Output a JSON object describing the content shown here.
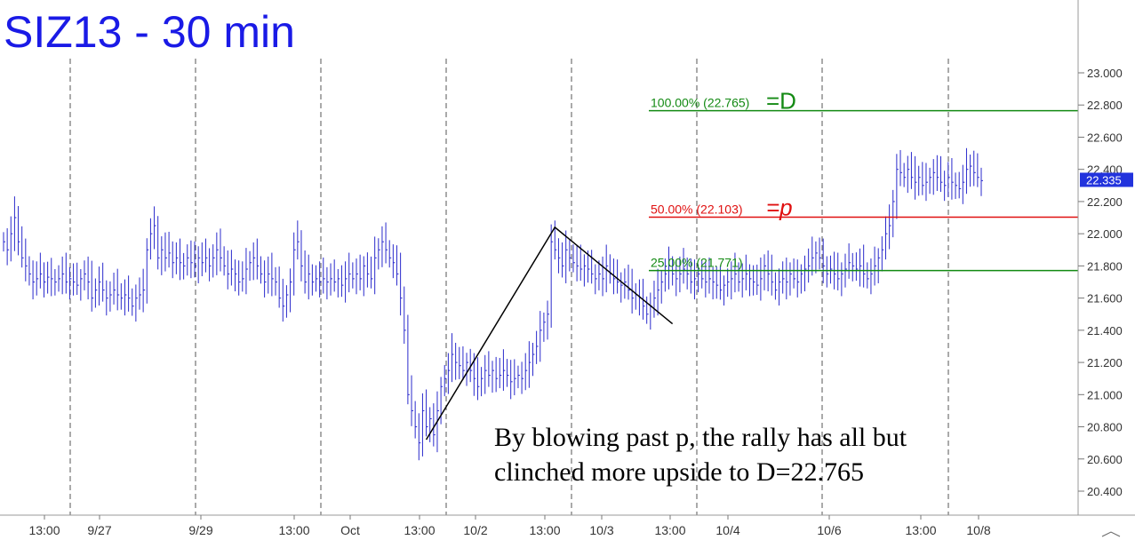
{
  "chart_data": {
    "type": "candlestick",
    "title": "SIZ13 - 30 min",
    "ylim": [
      20.3,
      23.1
    ],
    "yticks": [
      "23.000",
      "22.800",
      "22.600",
      "22.400",
      "22.200",
      "22.000",
      "21.800",
      "21.600",
      "21.400",
      "21.200",
      "21.000",
      "20.800",
      "20.600",
      "20.400"
    ],
    "ytick_values": [
      23.0,
      22.8,
      22.6,
      22.4,
      22.2,
      22.0,
      21.8,
      21.6,
      21.4,
      21.2,
      21.0,
      20.8,
      20.6,
      20.4
    ],
    "xticks": [
      "13:00",
      "9/27",
      "9/29",
      "13:00",
      "Oct",
      "13:00",
      "10/2",
      "13:00",
      "10/3",
      "13:00",
      "10/4",
      "10/6",
      "13:00",
      "10/8"
    ],
    "last_price": "22.335",
    "series_color": "#2a2acc",
    "closes": [
      21.95,
      21.9,
      22.0,
      22.1,
      21.95,
      21.85,
      21.8,
      21.75,
      21.7,
      21.72,
      21.75,
      21.7,
      21.73,
      21.72,
      21.7,
      21.72,
      21.75,
      21.7,
      21.72,
      21.7,
      21.68,
      21.72,
      21.75,
      21.7,
      21.6,
      21.65,
      21.7,
      21.65,
      21.6,
      21.62,
      21.65,
      21.62,
      21.6,
      21.62,
      21.6,
      21.55,
      21.6,
      21.62,
      21.65,
      21.9,
      22.0,
      22.05,
      21.85,
      21.9,
      21.85,
      21.88,
      21.82,
      21.85,
      21.82,
      21.8,
      21.85,
      21.82,
      21.8,
      21.85,
      21.82,
      21.85,
      21.8,
      21.85,
      21.9,
      21.85,
      21.8,
      21.75,
      21.78,
      21.75,
      21.7,
      21.72,
      21.78,
      21.82,
      21.85,
      21.8,
      21.75,
      21.7,
      21.75,
      21.72,
      21.7,
      21.6,
      21.55,
      21.62,
      21.7,
      21.9,
      21.95,
      21.8,
      21.7,
      21.75,
      21.7,
      21.72,
      21.7,
      21.72,
      21.7,
      21.72,
      21.7,
      21.72,
      21.68,
      21.72,
      21.75,
      21.72,
      21.75,
      21.72,
      21.8,
      21.75,
      21.72,
      21.85,
      21.9,
      21.95,
      21.9,
      21.85,
      21.82,
      21.75,
      21.6,
      21.4,
      21.0,
      20.9,
      20.8,
      20.7,
      20.9,
      20.8,
      20.85,
      20.75,
      20.9,
      21.05,
      21.1,
      21.15,
      21.25,
      21.2,
      21.18,
      21.15,
      21.2,
      21.15,
      21.1,
      21.05,
      21.1,
      21.15,
      21.12,
      21.15,
      21.1,
      21.12,
      21.15,
      21.12,
      21.08,
      21.1,
      21.12,
      21.1,
      21.15,
      21.2,
      21.25,
      21.3,
      21.4,
      21.45,
      21.5,
      21.95,
      21.9,
      21.85,
      21.8,
      21.9,
      21.85,
      21.82,
      21.8,
      21.78,
      21.8,
      21.78,
      21.75,
      21.72,
      21.75,
      21.72,
      21.8,
      21.75,
      21.72,
      21.7,
      21.68,
      21.7,
      21.65,
      21.6,
      21.62,
      21.6,
      21.55,
      21.5,
      21.55,
      21.6,
      21.65,
      21.7,
      21.75,
      21.8,
      21.75,
      21.72,
      21.75,
      21.78,
      21.75,
      21.7,
      21.72,
      21.75,
      21.72,
      21.7,
      21.72,
      21.7,
      21.68,
      21.65,
      21.68,
      21.7,
      21.72,
      21.75,
      21.7,
      21.72,
      21.75,
      21.72,
      21.7,
      21.68,
      21.72,
      21.8,
      21.75,
      21.7,
      21.65,
      21.7,
      21.72,
      21.7,
      21.75,
      21.72,
      21.7,
      21.75,
      21.78,
      21.8,
      21.85,
      21.88,
      21.85,
      21.8,
      21.75,
      21.78,
      21.75,
      21.72,
      21.75,
      21.78,
      21.82,
      21.8,
      21.78,
      21.8,
      21.75,
      21.72,
      21.75,
      21.8,
      21.85,
      21.9,
      22.0,
      22.05,
      22.2,
      22.4,
      22.38,
      22.35,
      22.4,
      22.35,
      22.32,
      22.35,
      22.3,
      22.32,
      22.35,
      22.38,
      22.35,
      22.32,
      22.3,
      22.35,
      22.32,
      22.3,
      22.28,
      22.32,
      22.4,
      22.42,
      22.38,
      22.35,
      22.33
    ]
  },
  "fibs": [
    {
      "pct_label": "100.00% (22.765)",
      "value": 22.765,
      "suffix": "=D",
      "color": "#138a13",
      "label_color": "#138a13"
    },
    {
      "pct_label": "50.00% (22.103)",
      "value": 22.103,
      "suffix": "=p",
      "color": "#e01010",
      "label_color": "#e01010"
    },
    {
      "pct_label": "25.00% (21.771)",
      "value": 21.771,
      "suffix": "",
      "color": "#138a13",
      "label_color": "#138a13"
    }
  ],
  "annotation": {
    "line1": "By blowing past p, the rally has all but",
    "line2": "clinched more upside to D=22.765"
  },
  "abc_pattern": {
    "points": [
      {
        "index": 115,
        "value": 20.72
      },
      {
        "index": 150,
        "value": 22.04
      },
      {
        "index": 182,
        "value": 21.44
      }
    ]
  }
}
